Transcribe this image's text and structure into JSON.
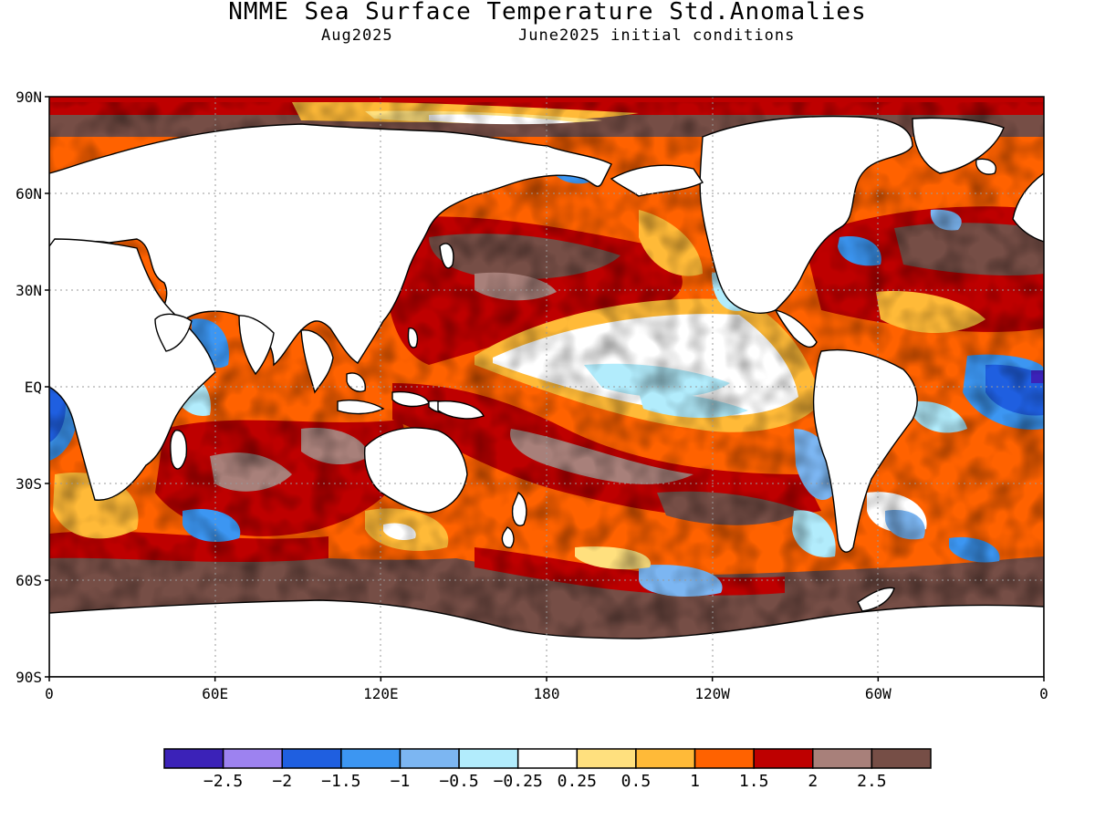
{
  "title": "NMME Sea Surface Temperature Std.Anomalies",
  "subtitle_left": "Aug2025",
  "subtitle_right": "June2025 initial conditions",
  "map": {
    "lat_ticks": [
      "90N",
      "60N",
      "30N",
      "EQ",
      "30S",
      "60S",
      "90S"
    ],
    "lat_values": [
      90,
      60,
      30,
      0,
      -30,
      -60,
      -90
    ],
    "lon_ticks": [
      "0",
      "60E",
      "120E",
      "180",
      "120W",
      "60W",
      "0"
    ],
    "lon_values": [
      0,
      60,
      120,
      180,
      240,
      300,
      360
    ],
    "land_color": "#ffffff",
    "gridlines": "dotted"
  },
  "colorbar": {
    "labels": [
      "−2.5",
      "−2",
      "−1.5",
      "−1",
      "−0.5",
      "−0.25",
      "0.25",
      "0.5",
      "1",
      "1.5",
      "2",
      "2.5"
    ],
    "colors": [
      "#3b22b8",
      "#9d82f0",
      "#1f5fe0",
      "#3c96f2",
      "#7cb6f2",
      "#b2ecfc",
      "#ffffff",
      "#ffe07e",
      "#ffba38",
      "#ff6200",
      "#be0000",
      "#a8807a",
      "#764e46"
    ]
  }
}
